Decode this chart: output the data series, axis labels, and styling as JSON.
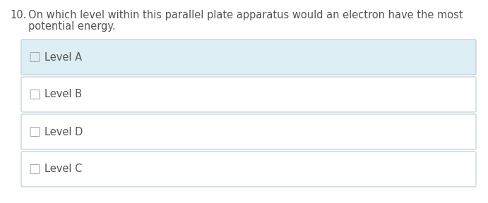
{
  "question_number": "10.",
  "question_text_line1": "On which level within this parallel plate apparatus would an electron have the most",
  "question_text_line2": "potential energy.",
  "options": [
    "Level A",
    "Level B",
    "Level D",
    "Level C"
  ],
  "selected_index": 0,
  "bg_color": "#ffffff",
  "option_bg_selected": "#ddeef5",
  "option_bg_normal": "#ffffff",
  "option_border_color": "#c0d0df",
  "text_color": "#555555",
  "question_color": "#555555",
  "font_size_question": 10.5,
  "font_size_option": 10.5,
  "checkbox_color": "#aaaaaa",
  "fig_width": 6.91,
  "fig_height": 2.88,
  "dpi": 100
}
